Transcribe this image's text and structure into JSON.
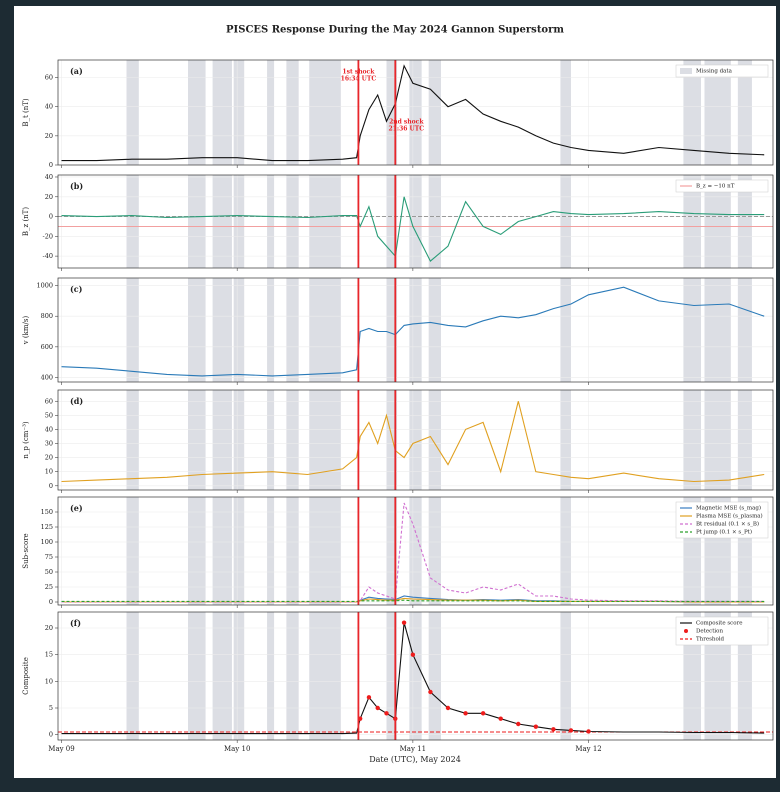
{
  "title": "PISCES Response During the May 2024 Gannon Superstorm",
  "xlabel": "Date (UTC), May 2024",
  "chart_data": [
    {
      "type": "line",
      "panel": "(a)",
      "ylabel": "B_t (nT)",
      "legend": "upper right",
      "x": [
        0,
        0.2,
        0.4,
        0.6,
        0.8,
        1.0,
        1.2,
        1.4,
        1.6,
        1.68,
        1.7,
        1.75,
        1.8,
        1.85,
        1.9,
        1.95,
        2.0,
        2.1,
        2.2,
        2.3,
        2.4,
        2.5,
        2.6,
        2.7,
        2.8,
        2.9,
        3.0,
        3.2,
        3.4,
        3.6,
        3.8,
        4.0
      ],
      "xlim": [
        -0.02,
        4.05
      ],
      "ylim": [
        0,
        72
      ],
      "yticks": [
        0,
        20,
        40,
        60
      ],
      "series": [
        {
          "values": [
            3,
            3,
            4,
            4,
            5,
            5,
            3,
            3,
            4,
            5,
            20,
            38,
            48,
            30,
            42,
            68,
            56,
            52,
            40,
            45,
            35,
            30,
            26,
            20,
            15,
            12,
            10,
            8,
            12,
            10,
            8,
            7
          ],
          "color": "#111111"
        }
      ],
      "shaded": {
        "name": "Missing data",
        "color": "#dcdee4",
        "spans": [
          [
            0.37,
            0.44
          ],
          [
            0.72,
            0.82
          ],
          [
            0.86,
            0.97
          ],
          [
            0.98,
            1.04
          ],
          [
            1.17,
            1.21
          ],
          [
            1.28,
            1.35
          ],
          [
            1.41,
            1.59
          ],
          [
            1.85,
            1.91
          ],
          [
            1.98,
            2.05
          ],
          [
            2.09,
            2.16
          ],
          [
            2.84,
            2.9
          ],
          [
            3.54,
            3.64
          ],
          [
            3.66,
            3.81
          ],
          [
            3.85,
            3.93
          ]
        ]
      },
      "annotations": [
        {
          "x": 1.69,
          "text": "1st shock",
          "time": "16:34 UTC",
          "color": "#e8262b"
        },
        {
          "x": 1.9,
          "text": "2nd shock",
          "time": "21:36 UTC",
          "color": "#e8262b"
        }
      ]
    },
    {
      "type": "line",
      "panel": "(b)",
      "ylabel": "B_z (nT)",
      "legend": "upper right",
      "x": [
        0,
        0.2,
        0.4,
        0.6,
        0.8,
        1.0,
        1.2,
        1.4,
        1.6,
        1.68,
        1.7,
        1.75,
        1.8,
        1.85,
        1.9,
        1.95,
        2.0,
        2.1,
        2.2,
        2.3,
        2.4,
        2.5,
        2.6,
        2.7,
        2.8,
        2.9,
        3.0,
        3.2,
        3.4,
        3.6,
        3.8,
        4.0
      ],
      "xlim": [
        -0.02,
        4.05
      ],
      "ylim": [
        -52,
        42
      ],
      "yticks": [
        -40,
        -20,
        0,
        20,
        40
      ],
      "series": [
        {
          "values": [
            1,
            0,
            1,
            -1,
            0,
            1,
            0,
            -1,
            1,
            1,
            -10,
            10,
            -20,
            -30,
            -40,
            20,
            -10,
            -45,
            -30,
            15,
            -10,
            -18,
            -5,
            0,
            5,
            3,
            2,
            3,
            5,
            3,
            2,
            2
          ],
          "color": "#2a9d78"
        }
      ],
      "hlines": [
        {
          "y": 0,
          "color": "#999999",
          "dash": true
        },
        {
          "y": -10,
          "color": "#f2a0a0",
          "name": "B_z = −10 nT"
        }
      ]
    },
    {
      "type": "line",
      "panel": "(c)",
      "ylabel": "v (km/s)",
      "x": [
        0,
        0.2,
        0.4,
        0.6,
        0.8,
        1.0,
        1.2,
        1.4,
        1.6,
        1.68,
        1.7,
        1.75,
        1.8,
        1.85,
        1.9,
        1.95,
        2.0,
        2.1,
        2.2,
        2.3,
        2.4,
        2.5,
        2.6,
        2.7,
        2.8,
        2.9,
        3.0,
        3.2,
        3.4,
        3.6,
        3.8,
        4.0
      ],
      "xlim": [
        -0.02,
        4.05
      ],
      "ylim": [
        370,
        1050
      ],
      "yticks": [
        400,
        600,
        800,
        1000
      ],
      "series": [
        {
          "values": [
            470,
            460,
            440,
            420,
            410,
            420,
            410,
            420,
            430,
            450,
            700,
            720,
            700,
            700,
            680,
            740,
            750,
            760,
            740,
            730,
            770,
            800,
            790,
            810,
            850,
            880,
            940,
            990,
            900,
            870,
            880,
            800
          ],
          "color": "#2a7ab8"
        }
      ]
    },
    {
      "type": "line",
      "panel": "(d)",
      "ylabel": "n_p (cm⁻³)",
      "x": [
        0,
        0.2,
        0.4,
        0.6,
        0.8,
        1.0,
        1.2,
        1.4,
        1.6,
        1.68,
        1.7,
        1.75,
        1.8,
        1.85,
        1.9,
        1.95,
        2.0,
        2.1,
        2.2,
        2.3,
        2.4,
        2.5,
        2.6,
        2.7,
        2.8,
        2.9,
        3.0,
        3.2,
        3.4,
        3.6,
        3.8,
        4.0
      ],
      "xlim": [
        -0.02,
        4.05
      ],
      "ylim": [
        -3,
        68
      ],
      "yticks": [
        0,
        10,
        20,
        30,
        40,
        50,
        60
      ],
      "series": [
        {
          "values": [
            3,
            4,
            5,
            6,
            8,
            9,
            10,
            8,
            12,
            20,
            35,
            45,
            30,
            50,
            25,
            20,
            30,
            35,
            15,
            40,
            45,
            10,
            60,
            10,
            8,
            6,
            5,
            9,
            5,
            3,
            4,
            8
          ],
          "color": "#e0a020"
        }
      ]
    },
    {
      "type": "line",
      "panel": "(e)",
      "ylabel": "Sub-score",
      "legend": "upper right",
      "x": [
        0,
        0.2,
        0.4,
        0.6,
        0.8,
        1.0,
        1.2,
        1.4,
        1.6,
        1.68,
        1.7,
        1.75,
        1.8,
        1.85,
        1.9,
        1.95,
        2.0,
        2.1,
        2.2,
        2.3,
        2.4,
        2.5,
        2.6,
        2.7,
        2.8,
        2.9,
        3.0,
        3.2,
        3.4,
        3.6,
        3.8,
        4.0
      ],
      "xlim": [
        -0.02,
        4.05
      ],
      "ylim": [
        -5,
        175
      ],
      "yticks": [
        0,
        25,
        50,
        75,
        100,
        125,
        150
      ],
      "series": [
        {
          "name": "Magnetic MSE (s_mag)",
          "color": "#3a7dc0",
          "values": [
            0,
            0,
            0,
            0,
            0,
            0,
            0,
            0,
            0,
            0,
            3,
            8,
            6,
            5,
            4,
            10,
            8,
            6,
            4,
            3,
            4,
            3,
            4,
            2,
            2,
            1,
            1,
            1,
            1,
            0,
            0,
            0
          ]
        },
        {
          "name": "Plasma MSE (s_plasma)",
          "color": "#e0a020",
          "values": [
            0,
            0,
            0,
            0,
            0,
            0,
            0,
            0,
            0,
            0,
            2,
            5,
            4,
            3,
            3,
            6,
            5,
            4,
            3,
            3,
            3,
            2,
            3,
            1,
            1,
            1,
            1,
            1,
            1,
            0,
            0,
            0
          ]
        },
        {
          "name": "Bt residual (0.1 × s_B)",
          "color": "#d070d0",
          "dash": true,
          "values": [
            0,
            0,
            0,
            0,
            0,
            0,
            0,
            0,
            0,
            0,
            2,
            25,
            15,
            10,
            5,
            165,
            130,
            40,
            20,
            15,
            25,
            20,
            30,
            10,
            10,
            5,
            3,
            2,
            2,
            1,
            1,
            1
          ]
        },
        {
          "name": "Pt jump (0.1 × s_Pt)",
          "color": "#2ca02c",
          "dash": true,
          "values": [
            1,
            1,
            1,
            1,
            1,
            1,
            1,
            1,
            1,
            1,
            2,
            2,
            2,
            2,
            2,
            3,
            2,
            2,
            2,
            2,
            2,
            2,
            2,
            1,
            1,
            1,
            1,
            1,
            1,
            1,
            1,
            1
          ]
        }
      ]
    },
    {
      "type": "line",
      "panel": "(f)",
      "ylabel": "Composite",
      "legend": "upper right",
      "x": [
        0,
        0.2,
        0.4,
        0.6,
        0.8,
        1.0,
        1.2,
        1.4,
        1.6,
        1.68,
        1.7,
        1.75,
        1.8,
        1.85,
        1.9,
        1.95,
        2.0,
        2.1,
        2.2,
        2.3,
        2.4,
        2.5,
        2.6,
        2.7,
        2.8,
        2.9,
        3.0,
        3.2,
        3.4,
        3.6,
        3.8,
        4.0
      ],
      "xlim": [
        -0.02,
        4.05
      ],
      "ylim": [
        -1,
        23
      ],
      "yticks": [
        0,
        5,
        10,
        15,
        20
      ],
      "xticks": [
        {
          "value": 0,
          "label": "May 09"
        },
        {
          "value": 1,
          "label": "May 10"
        },
        {
          "value": 2,
          "label": "May 11"
        },
        {
          "value": 3,
          "label": "May 12"
        }
      ],
      "series": [
        {
          "name": "Composite score",
          "color": "#111111",
          "values": [
            0.2,
            0.2,
            0.2,
            0.2,
            0.2,
            0.2,
            0.2,
            0.2,
            0.2,
            0.3,
            3,
            7,
            5,
            4,
            3,
            21,
            15,
            8,
            5,
            4,
            4,
            3,
            2,
            1.5,
            1,
            0.8,
            0.6,
            0.5,
            0.5,
            0.4,
            0.4,
            0.3
          ]
        },
        {
          "name": "Detection",
          "color": "#ee1c1c",
          "markers": true,
          "values": [
            null,
            null,
            null,
            null,
            null,
            null,
            null,
            null,
            null,
            null,
            3,
            7,
            5,
            4,
            3,
            21,
            15,
            8,
            5,
            4,
            4,
            3,
            2,
            1.5,
            1,
            0.8,
            0.6,
            null,
            null,
            null,
            null,
            null
          ]
        }
      ],
      "hlines": [
        {
          "y": 0.5,
          "color": "#ee1c1c",
          "dash": true,
          "name": "Threshold"
        }
      ]
    }
  ]
}
